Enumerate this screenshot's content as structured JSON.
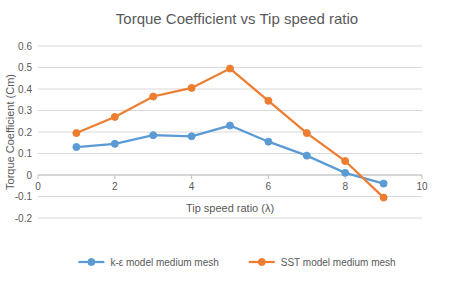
{
  "chart_data": {
    "type": "line",
    "title": "Torque Coefficient vs Tip speed ratio",
    "x_label": "Tip speed ratio (λ)",
    "y_label": "Torque Coefficient (Cm)",
    "x": [
      1,
      2,
      3,
      4,
      5,
      6,
      7,
      8,
      9
    ],
    "series": [
      {
        "name": "k-ε model medium mesh",
        "color": "#5b9bd5",
        "marker": "circle",
        "values": [
          0.13,
          0.145,
          0.185,
          0.18,
          0.23,
          0.155,
          0.09,
          0.01,
          -0.04
        ]
      },
      {
        "name": "SST model medium mesh",
        "color": "#ed7d31",
        "marker": "circle",
        "values": [
          0.195,
          0.27,
          0.365,
          0.405,
          0.495,
          0.345,
          0.195,
          0.065,
          -0.105
        ]
      }
    ],
    "xlim": [
      0,
      10
    ],
    "xticks": [
      0,
      2,
      4,
      6,
      8,
      10
    ],
    "ylim": [
      -0.2,
      0.6
    ],
    "yticks": [
      -0.2,
      -0.1,
      0,
      0.1,
      0.2,
      0.3,
      0.4,
      0.5,
      0.6
    ],
    "grid": true,
    "legend": "bottom"
  }
}
